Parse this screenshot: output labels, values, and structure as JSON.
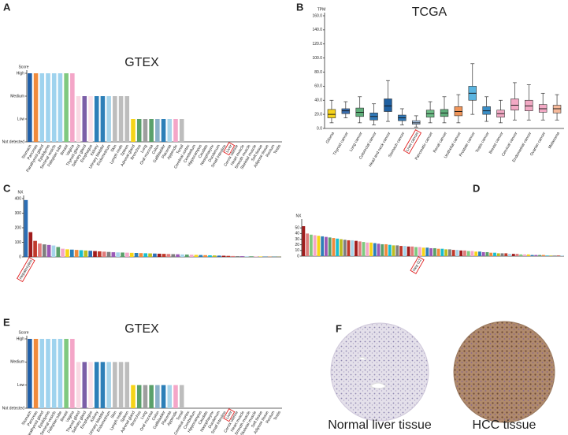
{
  "chart_data": [
    {
      "type": "gtex",
      "label": "A",
      "title": "GTEX",
      "ylabel": "Score",
      "categories": [
        "Stomach",
        "Pancreas",
        "Parathyroid gland",
        "Epididymis",
        "Seminal vesicle",
        "Fallopian tube",
        "Breast",
        "Vagina",
        "Thyroid gland",
        "Salivary gland",
        "Esophagus",
        "Kidney",
        "Urinary bladder",
        "Endometrium",
        "Skin",
        "Lymph node",
        "Spleen",
        "Adrenal gland",
        "Bronchus",
        "Lung",
        "Oral mucosa",
        "Colon",
        "Gallbladder",
        "Placenta",
        "Appendix",
        "Tonsil",
        "Cerebral cortex",
        "Cerebellum",
        "Hippocampus",
        "Caudate",
        "Nasopharynx",
        "Duodenum",
        "Small intestine",
        "Liver",
        "Cervix uterine",
        "Heart muscle",
        "Smooth muscle",
        "Skeletal muscle",
        "Soft tissue",
        "Adipose tissue",
        "Rectum",
        "Testis"
      ],
      "values": [
        3,
        3,
        3,
        3,
        3,
        3,
        3,
        3,
        2,
        2,
        2,
        2,
        2,
        2,
        2,
        2,
        2,
        1,
        1,
        1,
        1,
        1,
        1,
        1,
        1,
        1,
        0,
        0,
        0,
        0,
        0,
        0,
        0,
        0,
        0,
        0,
        0,
        0,
        0,
        0,
        0,
        0
      ],
      "colors": [
        "#1f5fa8",
        "#f08a3c",
        "#9fd3ee",
        "#9fd3ee",
        "#9fd3ee",
        "#9fd3ee",
        "#7fc97f",
        "#f4a6c8",
        "#f9d9e3",
        "#7b5ea7",
        "#fbe2ea",
        "#2c7fb8",
        "#2c7fb8",
        "#a6d4ea",
        "#bdbdbd",
        "#bdbdbd",
        "#bdbdbd",
        "#f7d417",
        "#5aa06a",
        "#9e9e9e",
        "#5aa06a",
        "#8ab0c8",
        "#2c7fb8",
        "#a6d4ea",
        "#f4a6c8",
        "#bdbdbd",
        "#bdbdbd",
        "#bdbdbd",
        "#bdbdbd",
        "#bdbdbd",
        "#bdbdbd",
        "#bdbdbd",
        "#bdbdbd",
        "#bdbdbd",
        "#bdbdbd",
        "#bdbdbd",
        "#bdbdbd",
        "#bdbdbd",
        "#bdbdbd",
        "#bdbdbd",
        "#bdbdbd",
        "#bdbdbd"
      ],
      "highlight": 33,
      "ylim": [
        0,
        3
      ],
      "yticks": [
        {
          "value": 0,
          "label": "Not detected"
        },
        {
          "value": 1,
          "label": "Low"
        },
        {
          "value": 2,
          "label": "Medium"
        },
        {
          "value": 3,
          "label": "High"
        }
      ]
    },
    {
      "type": "box",
      "label": "B",
      "title": "TCGA",
      "ylabel": "TPM",
      "categories": [
        "Glioma",
        "Thyroid cancer",
        "Lung cancer",
        "Colorectal cancer",
        "Head and neck cancer",
        "Stomach cancer",
        "Liver cancer",
        "Pancreatic cancer",
        "Renal cancer",
        "Urothelial cancer",
        "Prostate cancer",
        "Testis cancer",
        "Breast cancer",
        "Cervical cancer",
        "Endometrial cancer",
        "Ovarian cancer",
        "Melanoma"
      ],
      "boxes": [
        {
          "min": 8,
          "q1": 15,
          "median": 20,
          "q3": 27,
          "max": 40
        },
        {
          "min": 15,
          "q1": 21,
          "median": 25,
          "q3": 28,
          "max": 38
        },
        {
          "min": 8,
          "q1": 17,
          "median": 23,
          "q3": 29,
          "max": 45
        },
        {
          "min": 5,
          "q1": 12,
          "median": 17,
          "q3": 22,
          "max": 35
        },
        {
          "min": 10,
          "q1": 24,
          "median": 32,
          "q3": 42,
          "max": 68
        },
        {
          "min": 5,
          "q1": 11,
          "median": 15,
          "q3": 19,
          "max": 28
        },
        {
          "min": 2,
          "q1": 6,
          "median": 8,
          "q3": 11,
          "max": 18
        },
        {
          "min": 8,
          "q1": 16,
          "median": 21,
          "q3": 26,
          "max": 38
        },
        {
          "min": 8,
          "q1": 17,
          "median": 22,
          "q3": 27,
          "max": 45
        },
        {
          "min": 8,
          "q1": 18,
          "median": 24,
          "q3": 31,
          "max": 48
        },
        {
          "min": 20,
          "q1": 40,
          "median": 50,
          "q3": 60,
          "max": 92
        },
        {
          "min": 10,
          "q1": 20,
          "median": 25,
          "q3": 31,
          "max": 45
        },
        {
          "min": 8,
          "q1": 16,
          "median": 21,
          "q3": 26,
          "max": 40
        },
        {
          "min": 12,
          "q1": 26,
          "median": 33,
          "q3": 42,
          "max": 65
        },
        {
          "min": 12,
          "q1": 25,
          "median": 32,
          "q3": 40,
          "max": 62
        },
        {
          "min": 12,
          "q1": 23,
          "median": 28,
          "q3": 34,
          "max": 50
        },
        {
          "min": 12,
          "q1": 22,
          "median": 28,
          "q3": 33,
          "max": 48
        }
      ],
      "colors": [
        "#f5d21c",
        "#3a6fb0",
        "#5fae7a",
        "#2f78b8",
        "#1f5fa0",
        "#2f78b8",
        "#a9c7e8",
        "#6fbf88",
        "#5fae7a",
        "#f0955a",
        "#5ab4e0",
        "#3a8fc8",
        "#f2a9c4",
        "#f2a9c4",
        "#f2a9c4",
        "#f2a9c4",
        "#f6b99a"
      ],
      "highlight": 6,
      "ylim": [
        0,
        160
      ],
      "yticks": [
        {
          "value": 0,
          "label": "0.0"
        },
        {
          "value": 20,
          "label": "20.0"
        },
        {
          "value": 40,
          "label": "40.0"
        },
        {
          "value": 60,
          "label": "60.0"
        },
        {
          "value": 80,
          "label": "80.0"
        },
        {
          "value": 100,
          "label": "100.0"
        },
        {
          "value": 120,
          "label": "120.0"
        },
        {
          "value": 140,
          "label": "140.0"
        },
        {
          "value": 160,
          "label": "160.0"
        }
      ]
    },
    {
      "type": "bar",
      "label": "C",
      "ylabel": "NX",
      "categories": [
        null,
        "Hepatocytes",
        null,
        null,
        null,
        null,
        null,
        null,
        null,
        null,
        null,
        null,
        null,
        null,
        null,
        null,
        null,
        null,
        null,
        null,
        null,
        null,
        null,
        null,
        null,
        null,
        null,
        null,
        null,
        null,
        null,
        null,
        null,
        null,
        null,
        null,
        null,
        null,
        null,
        null,
        null,
        null,
        null,
        null,
        null,
        null,
        null,
        null,
        null,
        null,
        null,
        null,
        null,
        null,
        null,
        null
      ],
      "values": [
        390,
        170,
        110,
        92,
        86,
        82,
        78,
        68,
        56,
        52,
        50,
        48,
        46,
        44,
        42,
        40,
        38,
        36,
        34,
        32,
        31,
        30,
        29,
        28,
        27,
        26,
        25,
        24,
        23,
        22,
        21,
        20,
        19,
        18,
        17,
        16,
        15,
        14,
        13,
        12,
        11,
        10,
        9,
        8,
        7,
        6,
        5,
        5,
        4,
        4,
        3,
        3,
        2,
        2,
        1,
        1
      ],
      "palette": [
        "#2c6eb5",
        "#a01c1c",
        "#c0392b",
        "#e07b7b",
        "#7f7f7f",
        "#9b59b6",
        "#a6d4ea",
        "#5aa06a",
        "#f4a6c8",
        "#f7d417",
        "#2c7fb8",
        "#f08a3c",
        "#17becf",
        "#bcbd22"
      ],
      "highlight": 1,
      "ylim": [
        0,
        400
      ],
      "yticks": [
        0,
        100,
        200,
        300,
        400
      ]
    },
    {
      "type": "bar",
      "label": "D",
      "ylabel": "NX",
      "categories": [
        null,
        null,
        null,
        null,
        null,
        null,
        null,
        null,
        null,
        null,
        null,
        null,
        null,
        null,
        null,
        null,
        null,
        null,
        null,
        null,
        null,
        null,
        null,
        null,
        null,
        null,
        null,
        null,
        null,
        null,
        null,
        "Hep G2",
        null,
        null,
        null,
        null,
        null,
        null,
        null,
        null,
        null,
        null,
        null,
        null,
        null,
        null,
        null,
        null,
        null,
        null,
        null,
        null,
        null,
        null,
        null,
        null,
        null,
        null,
        null,
        null,
        null,
        null,
        null,
        null,
        null,
        null,
        null,
        null,
        null,
        null
      ],
      "values": [
        53,
        40,
        38,
        37,
        36,
        35,
        34,
        33,
        32,
        31,
        30,
        29,
        28,
        28,
        27,
        26,
        25,
        24,
        24,
        23,
        22,
        21,
        21,
        20,
        19,
        19,
        18,
        18,
        17,
        17,
        16,
        16,
        15,
        15,
        14,
        14,
        13,
        13,
        12,
        12,
        11,
        11,
        10,
        10,
        9,
        9,
        8,
        8,
        7,
        7,
        6,
        6,
        5,
        5,
        5,
        4,
        4,
        4,
        3,
        3,
        3,
        2,
        2,
        2,
        2,
        1,
        1,
        1,
        1,
        1
      ],
      "palette": [
        "#a01c1c",
        "#e07b7b",
        "#7fc97f",
        "#f4a6c8",
        "#f7d417",
        "#2c7fb8",
        "#9b59b6",
        "#5aa06a",
        "#f08a3c",
        "#17becf",
        "#bcbd22",
        "#7f7f7f",
        "#c0392b",
        "#a6d4ea"
      ],
      "highlight": 31,
      "ylim": [
        0,
        60
      ],
      "yticks": [
        0,
        10,
        20,
        30,
        40,
        50
      ]
    },
    {
      "type": "gtex",
      "label": "E",
      "title": "GTEX",
      "ylabel": "Score",
      "categories": [
        "Stomach",
        "Pancreas",
        "Parathyroid gland",
        "Epididymis",
        "Seminal vesicle",
        "Fallopian tube",
        "Breast",
        "Vagina",
        "Thyroid gland",
        "Salivary gland",
        "Esophagus",
        "Kidney",
        "Urinary bladder",
        "Endometrium",
        "Skin",
        "Lymph node",
        "Spleen",
        "Adrenal gland",
        "Bronchus",
        "Lung",
        "Oral mucosa",
        "Colon",
        "Gallbladder",
        "Placenta",
        "Appendix",
        "Tonsil",
        "Cerebral cortex",
        "Cerebellum",
        "Hippocampus",
        "Caudate",
        "Nasopharynx",
        "Duodenum",
        "Small intestine",
        "Liver",
        "Cervix uterine",
        "Heart muscle",
        "Smooth muscle",
        "Skeletal muscle",
        "Soft tissue",
        "Adipose tissue",
        "Rectum",
        "Testis"
      ],
      "values": [
        3,
        3,
        3,
        3,
        3,
        3,
        3,
        3,
        2,
        2,
        2,
        2,
        2,
        2,
        2,
        2,
        2,
        1,
        1,
        1,
        1,
        1,
        1,
        1,
        1,
        1,
        0,
        0,
        0,
        0,
        0,
        0,
        0,
        0,
        0,
        0,
        0,
        0,
        0,
        0,
        0,
        0
      ],
      "colors": [
        "#1f5fa8",
        "#f08a3c",
        "#9fd3ee",
        "#9fd3ee",
        "#9fd3ee",
        "#9fd3ee",
        "#7fc97f",
        "#f4a6c8",
        "#f9d9e3",
        "#7b5ea7",
        "#fbe2ea",
        "#2c7fb8",
        "#2c7fb8",
        "#a6d4ea",
        "#bdbdbd",
        "#bdbdbd",
        "#bdbdbd",
        "#f7d417",
        "#5aa06a",
        "#9e9e9e",
        "#5aa06a",
        "#8ab0c8",
        "#2c7fb8",
        "#a6d4ea",
        "#f4a6c8",
        "#bdbdbd",
        "#bdbdbd",
        "#bdbdbd",
        "#bdbdbd",
        "#bdbdbd",
        "#bdbdbd",
        "#bdbdbd",
        "#bdbdbd",
        "#bdbdbd",
        "#bdbdbd",
        "#bdbdbd",
        "#bdbdbd",
        "#bdbdbd",
        "#bdbdbd",
        "#bdbdbd",
        "#bdbdbd",
        "#bdbdbd"
      ],
      "highlight": 33,
      "ylim": [
        0,
        3
      ],
      "yticks": [
        {
          "value": 0,
          "label": "Not detected"
        },
        {
          "value": 1,
          "label": "Low"
        },
        {
          "value": 2,
          "label": "Medium"
        },
        {
          "value": 3,
          "label": "High"
        }
      ]
    }
  ],
  "figure_f": {
    "label": "F",
    "images": [
      {
        "caption": "Normal liver tissue"
      },
      {
        "caption": "HCC tissue"
      }
    ]
  }
}
